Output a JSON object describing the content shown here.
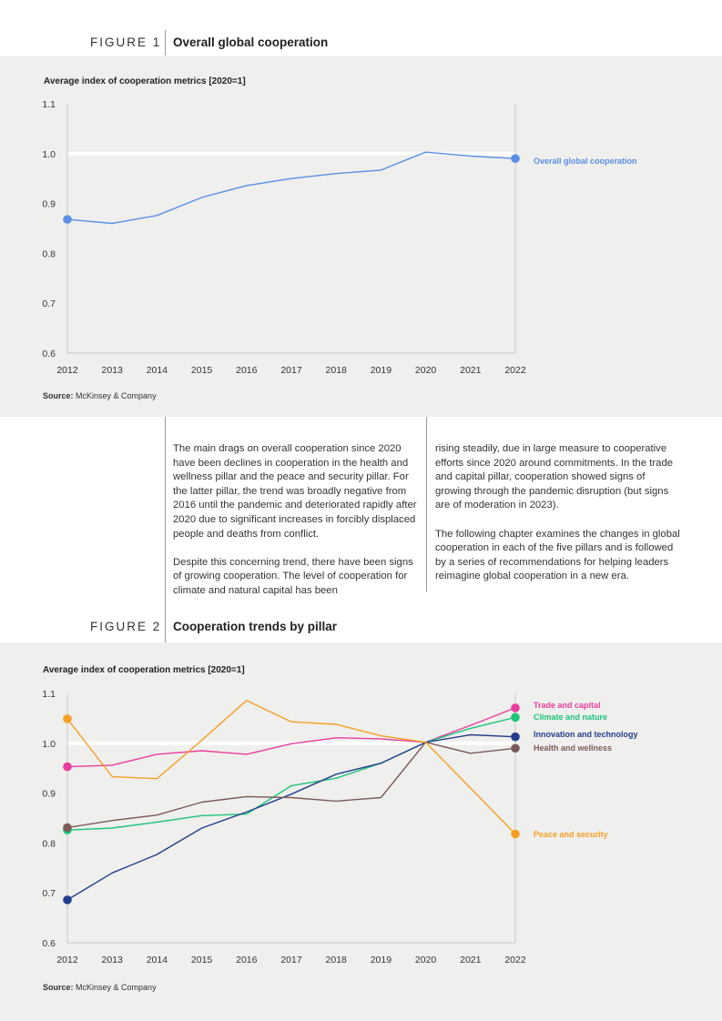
{
  "figure1": {
    "label": "FIGURE 1",
    "title": "Overall global cooperation",
    "source_label": "Source:",
    "source_text": "McKinsey & Company"
  },
  "figure2": {
    "label": "FIGURE 2",
    "title": "Cooperation trends by pillar",
    "source_label": "Source:",
    "source_text": "McKinsey & Company"
  },
  "body": {
    "col1": [
      "The main drags on overall cooperation since 2020 have been declines in cooperation in the health and wellness pillar and the peace and security pillar. For the latter pillar, the trend was broadly negative from 2016 until the pandemic and deteriorated rapidly after 2020 due to significant increases in forcibly displaced people and deaths from conflict.",
      "Despite this concerning trend, there have been signs of growing cooperation. The level of cooperation for climate and natural capital has been"
    ],
    "col2": [
      "rising steadily, due in large measure to cooperative efforts since 2020 around commitments. In the trade and capital pillar, cooperation showed signs of growing through the pandemic disruption (but signs are of moderation in 2023).",
      "The following chapter examines the changes in global cooperation in each of the five pillars and is followed by a series of recommendations for helping leaders reimagine global cooperation in a new era."
    ]
  },
  "chart_data": [
    {
      "type": "line",
      "title": "Average index of cooperation metrics [2020=1]",
      "xlabel": "",
      "ylabel": "",
      "x": [
        "2012",
        "2013",
        "2014",
        "2015",
        "2016",
        "2017",
        "2018",
        "2019",
        "2020",
        "2021",
        "2022"
      ],
      "ylim": [
        0.6,
        1.1
      ],
      "yticks": [
        "0.6",
        "0.7",
        "0.8",
        "0.9",
        "1.0",
        "1.1"
      ],
      "reference_line": 1.0,
      "series": [
        {
          "name": "Overall global cooperation",
          "color": "#5b8fe6",
          "values": [
            0.868,
            0.86,
            0.876,
            0.912,
            0.936,
            0.95,
            0.96,
            0.967,
            1.003,
            0.995,
            0.99
          ]
        }
      ]
    },
    {
      "type": "line",
      "title": "Average index of cooperation metrics [2020=1]",
      "xlabel": "",
      "ylabel": "",
      "x": [
        "2012",
        "2013",
        "2014",
        "2015",
        "2016",
        "2017",
        "2018",
        "2019",
        "2020",
        "2021",
        "2022"
      ],
      "ylim": [
        0.6,
        1.1
      ],
      "yticks": [
        "0.6",
        "0.7",
        "0.8",
        "0.9",
        "1.0",
        "1.1"
      ],
      "reference_line": 1.0,
      "series": [
        {
          "name": "Trade and capital",
          "color": "#e83e9e",
          "values": [
            0.953,
            0.956,
            0.978,
            0.985,
            0.978,
            0.999,
            1.011,
            1.009,
            1.002,
            1.036,
            1.071
          ]
        },
        {
          "name": "Climate and nature",
          "color": "#1fc47a",
          "values": [
            0.826,
            0.83,
            0.842,
            0.855,
            0.858,
            0.915,
            0.93,
            0.96,
            1.002,
            1.03,
            1.052
          ]
        },
        {
          "name": "Innovation and technology",
          "color": "#233f8c",
          "values": [
            0.686,
            0.74,
            0.777,
            0.83,
            0.862,
            0.898,
            0.938,
            0.96,
            1.002,
            1.017,
            1.013
          ]
        },
        {
          "name": "Health and wellness",
          "color": "#7d5a5a",
          "values": [
            0.831,
            0.845,
            0.856,
            0.882,
            0.893,
            0.891,
            0.884,
            0.891,
            1.002,
            0.98,
            0.99
          ]
        },
        {
          "name": "Peace and security",
          "color": "#f5a023",
          "values": [
            1.049,
            0.933,
            0.929,
            1.006,
            1.086,
            1.043,
            1.038,
            1.015,
            1.002,
            0.91,
            0.818
          ]
        }
      ]
    }
  ]
}
